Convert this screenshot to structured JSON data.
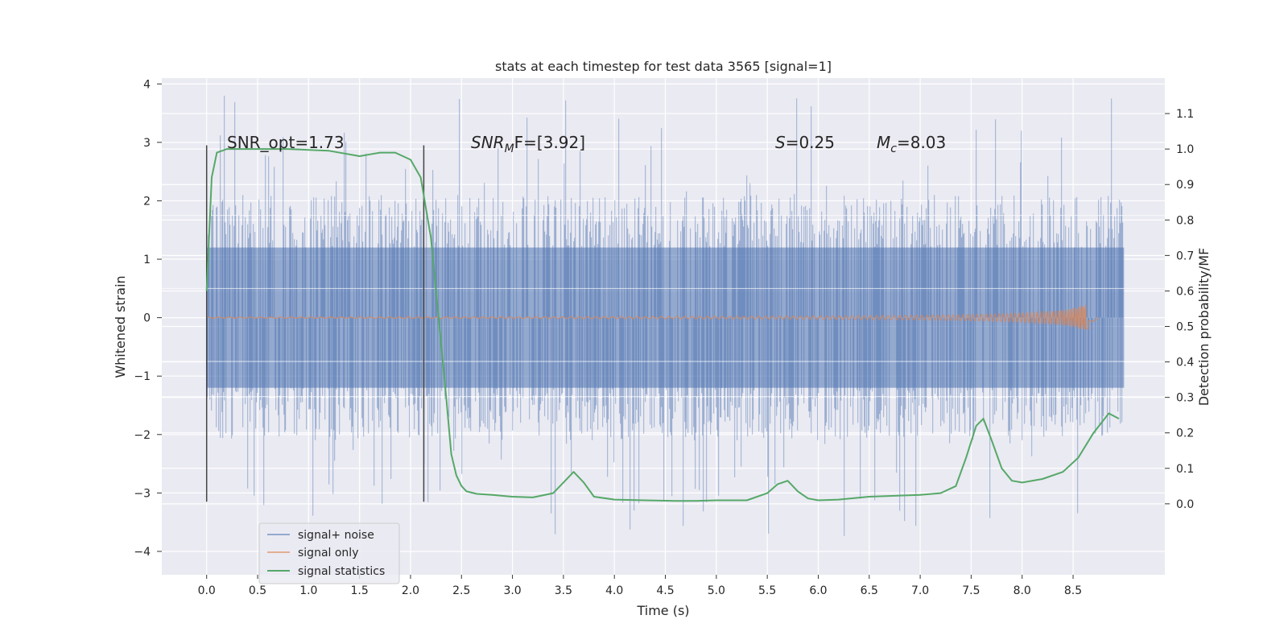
{
  "chart_data": {
    "type": "line",
    "title": "stats at each timestep for test data 3565 [signal=1]",
    "xlabel": "Time (s)",
    "ylabel": "Whitened strain",
    "ylabel_right": "Detection probability/MF",
    "xlim": [
      -0.44,
      9.4
    ],
    "ylim": [
      -4.4,
      4.1
    ],
    "ylim_right": [
      -0.2,
      1.2
    ],
    "x_ticks": [
      "0.0",
      "0.5",
      "1.0",
      "1.5",
      "2.0",
      "2.5",
      "3.0",
      "3.5",
      "4.0",
      "4.5",
      "5.0",
      "5.5",
      "6.0",
      "6.5",
      "7.0",
      "7.5",
      "8.0",
      "8.5"
    ],
    "y_ticks": [
      "−4",
      "−3",
      "−2",
      "−1",
      "0",
      "1",
      "2",
      "3",
      "4"
    ],
    "y_ticks_right": [
      "0.0",
      "0.1",
      "0.2",
      "0.3",
      "0.4",
      "0.5",
      "0.6",
      "0.7",
      "0.8",
      "0.9",
      "1.0",
      "1.1"
    ],
    "annotations": {
      "snr_opt": "SNR_opt=1.73",
      "snr_mf_base": "SNR",
      "snr_mf_sub": "M",
      "snr_mf_rest": "F=[3.92]",
      "s_label": "S",
      "s_value": "=0.25",
      "mc_label": "M",
      "mc_sub": "c",
      "mc_value": "=8.03"
    },
    "window_markers": [
      0.0,
      2.13
    ],
    "series": [
      {
        "name": "signal+ noise",
        "color": "#4c72b0",
        "description": "whitened strain noise, x from 0 to 9.0 s, core band about ±1.2 with spikes up to ±3.8",
        "x_range": [
          0.0,
          9.0
        ],
        "band": 1.2,
        "spikes_max": 3.8
      },
      {
        "name": "signal only",
        "color": "#dd8452",
        "description": "chirp signal growing toward merger near 8.65 s",
        "x_range": [
          0.0,
          8.65
        ],
        "peak_amplitude": 0.25
      },
      {
        "name": "signal statistics",
        "color": "#55a868",
        "axis": "right",
        "x": [
          0.0,
          0.05,
          0.1,
          0.2,
          0.4,
          0.8,
          1.2,
          1.5,
          1.6,
          1.7,
          1.85,
          2.0,
          2.1,
          2.2,
          2.3,
          2.35,
          2.4,
          2.45,
          2.5,
          2.55,
          2.65,
          2.8,
          3.0,
          3.2,
          3.4,
          3.5,
          3.6,
          3.7,
          3.8,
          4.0,
          4.3,
          4.6,
          4.8,
          5.0,
          5.3,
          5.5,
          5.6,
          5.7,
          5.8,
          5.9,
          6.0,
          6.2,
          6.5,
          7.0,
          7.2,
          7.35,
          7.45,
          7.55,
          7.62,
          7.7,
          7.8,
          7.9,
          8.0,
          8.2,
          8.4,
          8.55,
          8.7,
          8.85,
          8.95
        ],
        "values": [
          0.6,
          0.92,
          0.99,
          1.0,
          1.0,
          1.0,
          0.995,
          0.98,
          0.985,
          0.99,
          0.99,
          0.97,
          0.92,
          0.75,
          0.45,
          0.3,
          0.14,
          0.08,
          0.05,
          0.035,
          0.028,
          0.025,
          0.02,
          0.018,
          0.03,
          0.06,
          0.09,
          0.06,
          0.02,
          0.012,
          0.01,
          0.008,
          0.008,
          0.01,
          0.01,
          0.03,
          0.055,
          0.065,
          0.035,
          0.015,
          0.01,
          0.012,
          0.02,
          0.025,
          0.03,
          0.05,
          0.13,
          0.22,
          0.24,
          0.18,
          0.1,
          0.065,
          0.06,
          0.07,
          0.09,
          0.13,
          0.2,
          0.255,
          0.24
        ]
      }
    ],
    "legend": {
      "position": "lower-left",
      "entries": [
        "signal+ noise",
        "signal only",
        "signal statistics"
      ]
    },
    "grid": true,
    "colors": {
      "background": "#eaeaf2",
      "grid": "#ffffff",
      "noise": "#4c72b0",
      "signal": "#dd8452",
      "stats": "#55a868",
      "marker": "#444444"
    }
  }
}
